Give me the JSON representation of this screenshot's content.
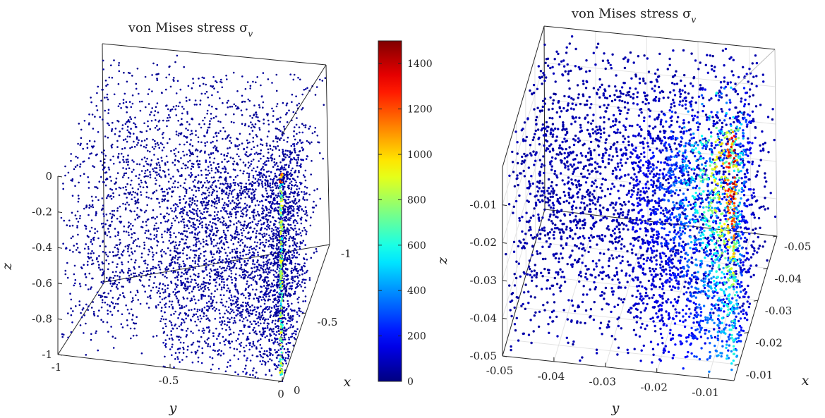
{
  "chart_data": [
    {
      "type": "scatter",
      "title": "von Mises stress σ",
      "title_subscript": "v",
      "xlabel": "x",
      "ylabel": "y",
      "zlabel": "z",
      "xlim": [
        -1,
        0
      ],
      "ylim": [
        -1,
        0
      ],
      "zlim": [
        -1,
        0
      ],
      "xticks": [
        -1,
        -0.5,
        0
      ],
      "xtick_labels": [
        "-1",
        "-0.5",
        "0"
      ],
      "yticks": [
        -1,
        -0.5,
        0
      ],
      "ytick_labels": [
        "-1",
        "-0.5",
        "0"
      ],
      "zticks": [
        0,
        -0.2,
        -0.4,
        -0.6,
        -0.8,
        -1
      ],
      "ztick_labels": [
        "0",
        "-0.2",
        "-0.4",
        "-0.6",
        "-0.8",
        "-1"
      ],
      "grid": false,
      "colormap": "jet",
      "color_range": [
        0,
        1500
      ],
      "description_of_data": "Point cloud filling the cube [-1,0]^3; nearly all points have stress near 0 (dark blue); points densify toward x=0,y=0 with a thin high-stress line along the edge x=0,y=0 from z=-0.15 to z=-1."
    },
    {
      "type": "scatter",
      "title": "von Mises stress σ",
      "title_subscript": "v",
      "xlabel": "x",
      "ylabel": "y",
      "zlabel": "z",
      "xlim": [
        -0.05,
        -0.005
      ],
      "ylim": [
        -0.05,
        -0.005
      ],
      "zlim": [
        -0.05,
        0
      ],
      "xticks": [
        -0.05,
        -0.04,
        -0.03,
        -0.02,
        -0.01
      ],
      "xtick_labels": [
        "-0.05",
        "-0.04",
        "-0.03",
        "-0.02",
        "-0.01"
      ],
      "yticks": [
        -0.05,
        -0.04,
        -0.03,
        -0.02,
        -0.01
      ],
      "ytick_labels": [
        "-0.05",
        "-0.04",
        "-0.03",
        "-0.02",
        "-0.01"
      ],
      "zticks": [
        -0.01,
        -0.02,
        -0.03,
        -0.04,
        -0.05
      ],
      "ztick_labels": [
        "-0.01",
        "-0.02",
        "-0.03",
        "-0.04",
        "-0.05"
      ],
      "grid": true,
      "colormap": "jet",
      "color_range": [
        0,
        1500
      ],
      "description_of_data": "Zoomed point cloud near the corner; stress rises toward x≈-0.007, y≈-0.007, peaking (~1400, red) around z≈-0.01 to -0.02, decreasing toward blue away from the edge."
    }
  ],
  "colorbar": {
    "colormap": "jet",
    "range": [
      0,
      1500
    ],
    "ticks": [
      0,
      200,
      400,
      600,
      800,
      1000,
      1200,
      1400
    ],
    "tick_labels": [
      "0",
      "200",
      "400",
      "600",
      "800",
      "1000",
      "1200",
      "1400"
    ]
  }
}
